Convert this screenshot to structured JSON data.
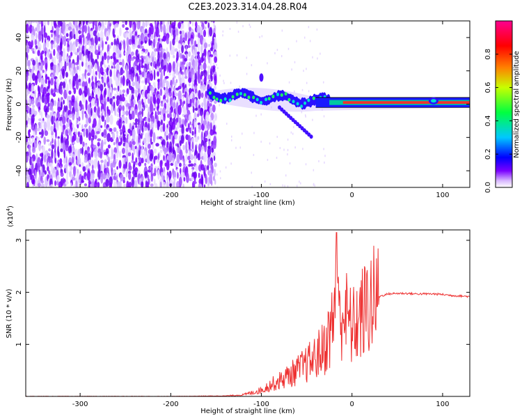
{
  "figure": {
    "title": "C2E3.2023.314.04.28.R04"
  },
  "chart_data": [
    {
      "type": "heatmap",
      "title": "C2E3.2023.314.04.28.R04",
      "xlabel": "Height of straight line (km)",
      "ylabel": "Frequency (Hz)",
      "xlim": [
        -360,
        130
      ],
      "ylim": [
        -50,
        50
      ],
      "x_ticks": [
        -300,
        -200,
        -100,
        0,
        100
      ],
      "y_ticks": [
        -40,
        -20,
        0,
        20,
        40
      ],
      "colorbar": {
        "label": "Normalized spectral amplitude",
        "range": [
          0,
          1
        ],
        "ticks": [
          "0.0",
          "0.2",
          "0.4",
          "0.6",
          "0.8"
        ],
        "colormap": [
          "#ffffff",
          "#7a00ff",
          "#0000ff",
          "#00c8ff",
          "#00ff40",
          "#c8ff00",
          "#ff8000",
          "#ff0000",
          "#ff0090"
        ]
      },
      "features": {
        "noise_region_x": [
          -360,
          -150
        ],
        "signal_band_center_hz": 0,
        "signal_x": [
          -160,
          130
        ]
      }
    },
    {
      "type": "line",
      "xlabel": "Height of straight line (km)",
      "ylabel": "SNR (10 * v/v)",
      "y_scale_label": "(x10",
      "y_scale_exp": "4",
      "y_scale_close": ")",
      "xlim": [
        -360,
        130
      ],
      "ylim": [
        0,
        3.2
      ],
      "x_ticks": [
        -300,
        -200,
        -100,
        0,
        100
      ],
      "y_ticks": [
        1,
        2,
        3
      ],
      "line_color": "#ee3030",
      "series": [
        {
          "x": [
            -360,
            -200,
            -140,
            -120,
            -100,
            -90,
            -80,
            -70,
            -60,
            -50,
            -40,
            -30,
            -25,
            -20,
            -17,
            -15,
            -10,
            -5,
            0,
            10,
            20,
            30,
            40,
            50,
            60,
            70,
            80,
            90,
            100,
            110,
            120,
            130
          ],
          "y": [
            0.0,
            0.0,
            0.01,
            0.03,
            0.12,
            0.22,
            0.3,
            0.4,
            0.5,
            0.62,
            0.75,
            0.95,
            1.2,
            1.45,
            3.1,
            1.55,
            1.65,
            1.5,
            1.3,
            1.55,
            1.78,
            1.92,
            1.97,
            1.98,
            1.98,
            1.97,
            1.97,
            1.97,
            1.96,
            1.94,
            1.93,
            1.92
          ]
        }
      ]
    }
  ]
}
